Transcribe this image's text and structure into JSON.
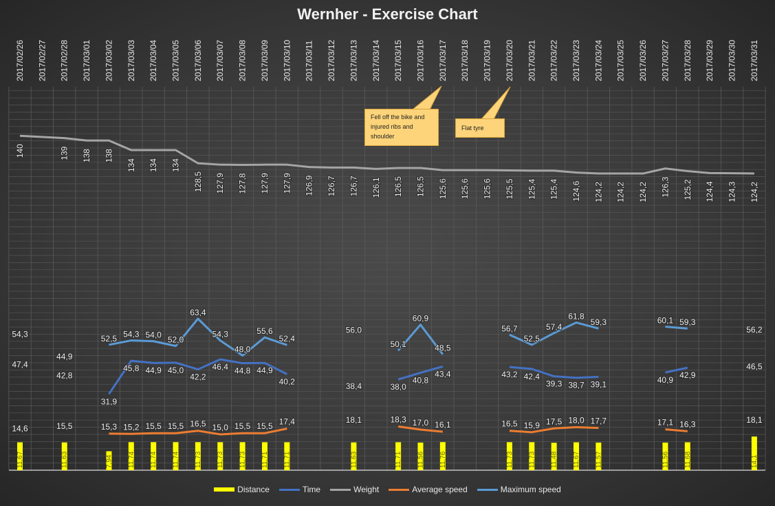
{
  "title": "Wernher - Exercise Chart",
  "chart_data": {
    "type": "line",
    "title": "Wernher - Exercise Chart",
    "xlabel": "",
    "ylabel": "",
    "ylim": [
      0,
      160
    ],
    "grid": true,
    "legend_position": "bottom",
    "categories": [
      "2017/02/26",
      "2017/02/27",
      "2017/02/28",
      "2017/03/01",
      "2017/03/02",
      "2017/03/03",
      "2017/03/04",
      "2017/03/05",
      "2017/03/06",
      "2017/03/07",
      "2017/03/08",
      "2017/03/09",
      "2017/03/10",
      "2017/03/11",
      "2017/03/12",
      "2017/03/13",
      "2017/03/14",
      "2017/03/15",
      "2017/03/16",
      "2017/03/17",
      "2017/03/18",
      "2017/03/19",
      "2017/03/20",
      "2017/03/21",
      "2017/03/22",
      "2017/03/23",
      "2017/03/24",
      "2017/03/25",
      "2017/03/26",
      "2017/03/27",
      "2017/03/28",
      "2017/03/29",
      "2017/03/30",
      "2017/03/31"
    ],
    "series": [
      {
        "name": "Distance",
        "type": "bar",
        "color": "#ffff00",
        "values": [
          11.67,
          null,
          11.63,
          null,
          7.94,
          11.74,
          11.74,
          11.74,
          11.73,
          11.73,
          11.73,
          11.71,
          11.71,
          null,
          null,
          11.63,
          null,
          11.71,
          11.56,
          11.76,
          null,
          null,
          11.73,
          11.73,
          11.48,
          11.67,
          11.57,
          null,
          null,
          11.56,
          11.68,
          null,
          null,
          14.1
        ]
      },
      {
        "name": "Time",
        "type": "line",
        "color": "#4472c4",
        "values": [
          47.4,
          null,
          42.8,
          null,
          31.9,
          45.8,
          44.9,
          45.0,
          42.2,
          46.4,
          44.8,
          44.9,
          40.2,
          null,
          null,
          38.4,
          null,
          38.0,
          40.8,
          43.4,
          null,
          null,
          43.2,
          42.4,
          39.3,
          38.7,
          39.1,
          null,
          null,
          40.9,
          42.9,
          null,
          null,
          46.5
        ]
      },
      {
        "name": "Weight",
        "type": "line",
        "color": "#a5a5a5",
        "values": [
          140,
          null,
          139,
          138,
          138,
          134,
          134,
          134,
          128.5,
          127.9,
          127.8,
          127.9,
          127.9,
          126.9,
          126.7,
          126.7,
          126.1,
          126.5,
          126.5,
          125.6,
          125.6,
          125.6,
          125.5,
          125.4,
          125.4,
          124.6,
          124.2,
          124.2,
          124.2,
          126.3,
          125.2,
          124.4,
          124.3,
          124.2
        ]
      },
      {
        "name": "Average speed",
        "type": "line",
        "color": "#ed7d31",
        "values": [
          14.6,
          null,
          15.5,
          null,
          15.3,
          15.2,
          15.5,
          15.5,
          16.5,
          15.0,
          15.5,
          15.5,
          17.4,
          null,
          null,
          18.1,
          null,
          18.3,
          17.0,
          16.1,
          null,
          null,
          16.5,
          15.9,
          17.5,
          18.0,
          17.7,
          null,
          null,
          17.1,
          16.3,
          null,
          null,
          18.1
        ]
      },
      {
        "name": "Maximum speed",
        "type": "line",
        "color": "#5b9bd5",
        "values": [
          54.3,
          null,
          44.9,
          null,
          52.5,
          54.3,
          54.0,
          52.0,
          63.4,
          54.3,
          48.0,
          55.6,
          52.4,
          null,
          null,
          56.0,
          null,
          50.1,
          60.9,
          48.5,
          null,
          null,
          56.7,
          52.5,
          57.4,
          61.8,
          59.3,
          null,
          null,
          60.1,
          59.3,
          null,
          null,
          56.2
        ]
      }
    ],
    "annotations": [
      {
        "text": "Fell off the bike and injured ribs and shoulder",
        "category": "2017/03/17"
      },
      {
        "text": "Flat tyre",
        "category": "2017/03/20"
      }
    ]
  },
  "annotations": {
    "note1": "Fell off the bike and injured ribs and shoulder",
    "note2": "Flat tyre"
  },
  "legend": [
    "Distance",
    "Time",
    "Weight",
    "Average speed",
    "Maximum speed"
  ]
}
